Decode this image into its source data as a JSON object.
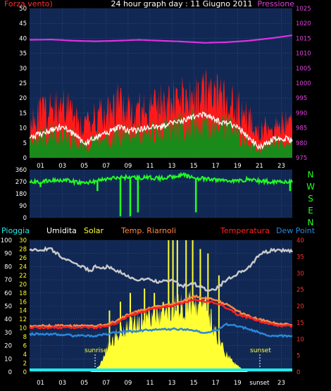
{
  "header": {
    "wind_label": "Forza vento)",
    "title": "24 hour graph day : 11 Giugno 2011",
    "pressure_label": "Pressione"
  },
  "legend": {
    "rain": "Pioggia",
    "humidity": "Umidita",
    "solar": "Solar",
    "temp_riarnoli": "Temp. Riarnoli",
    "temperature": "Temperatura",
    "dew_point": "Dew Point"
  },
  "compass": [
    "N",
    "W",
    "S",
    "E",
    "N"
  ],
  "annotations": {
    "sunrise": "sunrise",
    "sunset": "sunset"
  },
  "colors": {
    "plot_bg": "#112855",
    "wind_gust": "#ff1a1a",
    "wind_avg": "#1a8a1a",
    "wind_line": "#ffffff",
    "pressure": "#e030e0",
    "direction": "#22ff22",
    "humidity": "#c8c8c8",
    "solar": "#ffff33",
    "temperature": "#ff2222",
    "temp_riarnoli": "#ff8844",
    "dew_point": "#2a88d8",
    "rain": "#22e8e8"
  },
  "chart_data": [
    {
      "type": "area",
      "title": "24 hour graph day : 11 Giugno 2011",
      "x_ticks": [
        "01",
        "03",
        "05",
        "07",
        "09",
        "11",
        "13",
        "15",
        "17",
        "19",
        "21",
        "23"
      ],
      "y_left_ticks": [
        "0",
        "5",
        "10",
        "15",
        "20",
        "25",
        "30",
        "35",
        "40",
        "45",
        "50"
      ],
      "y_left_range": [
        0,
        50
      ],
      "y_right_ticks": [
        "975",
        "980",
        "985",
        "990",
        "995",
        "1000",
        "1005",
        "1010",
        "1015",
        "1020",
        "1025"
      ],
      "y_right_range": [
        975,
        1025
      ],
      "x_range_hours": [
        0,
        24
      ],
      "series": [
        {
          "name": "Forza vento)",
          "axis": "left",
          "x": [
            0,
            1,
            2,
            3,
            4,
            5,
            6,
            7,
            8,
            9,
            10,
            11,
            12,
            13,
            14,
            15,
            16,
            17,
            18,
            19,
            20,
            21,
            22,
            23,
            24
          ],
          "gust": [
            13,
            15,
            16,
            19,
            15,
            10,
            14,
            15,
            18,
            18,
            16,
            17,
            18,
            19,
            20,
            21,
            23,
            21,
            19,
            17,
            14,
            9,
            11,
            12,
            11
          ],
          "average": [
            6,
            7,
            8,
            9,
            7,
            4,
            6,
            7,
            9,
            8,
            8,
            9,
            9,
            10,
            11,
            12,
            13,
            11,
            10,
            9,
            6,
            3,
            5,
            6,
            5
          ]
        },
        {
          "name": "Pressione",
          "axis": "right",
          "x": [
            0,
            2,
            4,
            6,
            8,
            10,
            12,
            14,
            16,
            18,
            20,
            22,
            24
          ],
          "values": [
            1014.5,
            1014.6,
            1014.2,
            1014.0,
            1014.2,
            1014.5,
            1014.2,
            1013.9,
            1013.5,
            1013.7,
            1014.2,
            1015.0,
            1016.0
          ]
        }
      ]
    },
    {
      "type": "line",
      "y_ticks": [
        "0",
        "90",
        "180",
        "270",
        "360"
      ],
      "y_range": [
        0,
        360
      ],
      "x_range_hours": [
        0,
        24
      ],
      "series": [
        {
          "name": "wind direction",
          "x": [
            0,
            1,
            2,
            3,
            4,
            5,
            6,
            7,
            8,
            9,
            10,
            11,
            12,
            13,
            14,
            15,
            16,
            17,
            18,
            19,
            20,
            21,
            22,
            23,
            24
          ],
          "values": [
            270,
            268,
            280,
            285,
            270,
            260,
            275,
            290,
            300,
            305,
            300,
            300,
            295,
            310,
            320,
            300,
            290,
            285,
            280,
            275,
            290,
            275,
            270,
            275,
            265
          ]
        }
      ]
    },
    {
      "type": "line",
      "x_ticks": [
        "01",
        "03",
        "05",
        "07",
        "09",
        "11",
        "13",
        "15",
        "17",
        "19",
        "sunset",
        "23"
      ],
      "y_humidity_ticks": [
        "0",
        "10",
        "20",
        "30",
        "40",
        "50",
        "60",
        "70",
        "80",
        "90",
        "100"
      ],
      "y_humidity_range": [
        0,
        100
      ],
      "y_solar_ticks": [
        "0",
        "2",
        "4",
        "6",
        "8",
        "10",
        "12",
        "14",
        "16",
        "18",
        "20",
        "22",
        "24",
        "26",
        "28",
        "30"
      ],
      "y_solar_range": [
        0,
        30
      ],
      "y_temp_ticks": [
        "0",
        "5",
        "10",
        "15",
        "20",
        "25",
        "30",
        "35",
        "40"
      ],
      "y_temp_range": [
        0,
        40
      ],
      "x_range_hours": [
        0,
        24
      ],
      "series": [
        {
          "name": "Umidita",
          "axis": "humidity",
          "x": [
            0,
            1,
            2,
            3,
            4,
            5,
            5.5,
            6,
            6.5,
            7,
            8,
            9,
            10,
            11,
            12,
            13,
            14,
            15,
            16,
            17,
            18,
            19,
            20,
            21,
            22,
            23,
            24
          ],
          "values": [
            93,
            93,
            93,
            87,
            82,
            80,
            76,
            80,
            78,
            80,
            77,
            72,
            70,
            70,
            68,
            70,
            65,
            67,
            63,
            63,
            70,
            75,
            79,
            89,
            92,
            92,
            92
          ]
        },
        {
          "name": "Temperatura",
          "axis": "temp",
          "x": [
            0,
            2,
            4,
            6,
            7,
            8,
            9,
            10,
            11,
            12,
            13,
            14,
            15,
            16,
            17,
            18,
            19,
            20,
            21,
            22,
            23,
            24
          ],
          "values": [
            13.5,
            13.5,
            13.5,
            13.5,
            14,
            15,
            17,
            18,
            19,
            19.5,
            20,
            21,
            22,
            21.5,
            21,
            19.5,
            17.5,
            16.5,
            15.5,
            14.5,
            14,
            14
          ]
        },
        {
          "name": "Temp. Riarnoli",
          "axis": "temp",
          "x": [
            0,
            2,
            4,
            6,
            7,
            8,
            9,
            10,
            11,
            12,
            13,
            14,
            15,
            16,
            17,
            18,
            19,
            20,
            21,
            22,
            23,
            24
          ],
          "values": [
            14,
            14,
            14,
            14,
            14.5,
            15.5,
            17.5,
            18.5,
            19.5,
            20,
            20.5,
            21.5,
            23,
            22.5,
            22,
            20.5,
            18.5,
            17,
            16,
            15,
            14.5,
            14.5
          ]
        },
        {
          "name": "Dew Point",
          "axis": "temp",
          "x": [
            0,
            2,
            4,
            6,
            8,
            10,
            12,
            14,
            15,
            16,
            17,
            18,
            19,
            20,
            21,
            22,
            23,
            24
          ],
          "values": [
            11.5,
            11.5,
            11,
            11,
            12,
            12.5,
            13,
            13,
            12.5,
            12,
            12.5,
            14.5,
            14,
            13,
            12,
            11,
            11,
            11
          ]
        },
        {
          "name": "Solar",
          "axis": "solar",
          "x": [
            5.5,
            6,
            6.5,
            7,
            8,
            9,
            10,
            11,
            12,
            13,
            14,
            15,
            16,
            16.5,
            17,
            18,
            19,
            19.5,
            20
          ],
          "values": [
            0,
            0.5,
            2,
            5,
            9,
            11,
            12,
            13,
            14,
            15,
            15.5,
            16,
            15,
            13,
            9,
            4,
            1.5,
            0.5,
            0
          ],
          "peaks": [
            [
              7.3,
              14
            ],
            [
              8.3,
              16
            ],
            [
              9.2,
              18
            ],
            [
              10.5,
              19
            ],
            [
              11.4,
              18
            ],
            [
              12.7,
              30
            ],
            [
              13.1,
              30
            ],
            [
              13.5,
              30
            ],
            [
              14.3,
              30
            ],
            [
              14.9,
              30
            ],
            [
              15.6,
              28
            ],
            [
              16.3,
              27
            ],
            [
              17.3,
              22
            ]
          ]
        },
        {
          "name": "Pioggia",
          "axis": "humidity",
          "x": [
            0,
            24
          ],
          "values": [
            0,
            0
          ]
        }
      ]
    }
  ]
}
